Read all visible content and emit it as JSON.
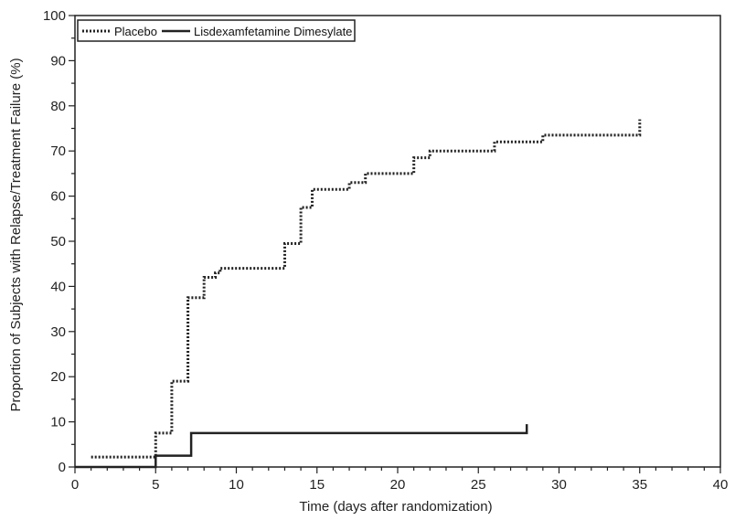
{
  "chart_data": {
    "type": "line",
    "title": "",
    "xlabel": "Time (days after randomization)",
    "ylabel": "Proportion of Subjects with Relapse/Treatment Failure (%)",
    "xlim": [
      0,
      40
    ],
    "ylim": [
      0,
      100
    ],
    "x_ticks": [
      0,
      5,
      10,
      15,
      20,
      25,
      30,
      35,
      40
    ],
    "y_ticks": [
      0,
      10,
      20,
      30,
      40,
      50,
      60,
      70,
      80,
      90,
      100
    ],
    "grid": false,
    "legend_placement": "top-left",
    "series": [
      {
        "name": "Placebo",
        "style": "dotted",
        "color": "#222222",
        "steps": [
          [
            1,
            2.2
          ],
          [
            5,
            2.2
          ],
          [
            5,
            7.5
          ],
          [
            6,
            7.5
          ],
          [
            6,
            19
          ],
          [
            7,
            19
          ],
          [
            7,
            37.5
          ],
          [
            8,
            37.5
          ],
          [
            8,
            42
          ],
          [
            8.7,
            42
          ],
          [
            8.7,
            43
          ],
          [
            9,
            43
          ],
          [
            9,
            44
          ],
          [
            13,
            44
          ],
          [
            13,
            49.5
          ],
          [
            14,
            49.5
          ],
          [
            14,
            57.5
          ],
          [
            14.7,
            57.5
          ],
          [
            14.7,
            61.5
          ],
          [
            17,
            61.5
          ],
          [
            17,
            63
          ],
          [
            18,
            63
          ],
          [
            18,
            65
          ],
          [
            21,
            65
          ],
          [
            21,
            68.5
          ],
          [
            22,
            68.5
          ],
          [
            22,
            70
          ],
          [
            26,
            70
          ],
          [
            26,
            72
          ],
          [
            29,
            72
          ],
          [
            29,
            73.5
          ],
          [
            35,
            73.5
          ],
          [
            35,
            77
          ]
        ]
      },
      {
        "name": "Lisdexamfetamine Dimesylate",
        "style": "solid",
        "color": "#222222",
        "steps": [
          [
            0,
            0
          ],
          [
            5,
            0
          ],
          [
            5,
            2.5
          ],
          [
            7.2,
            2.5
          ],
          [
            7.2,
            7.5
          ],
          [
            28,
            7.5
          ],
          [
            28,
            9.5
          ]
        ]
      }
    ]
  }
}
